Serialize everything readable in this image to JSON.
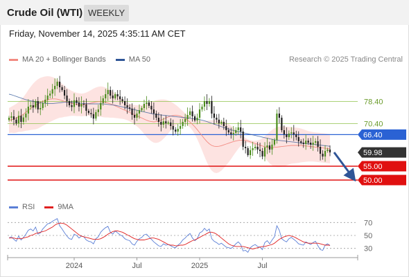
{
  "header": {
    "title": "Crude Oil (WTI)",
    "period": "WEEKLY"
  },
  "timestamp": "Friday, November 14, 2025 4:35:11 AM CET",
  "legend": {
    "items": [
      {
        "label": "MA 20 + Bollinger Bands",
        "color": "#f28b82"
      },
      {
        "label": "MA 50",
        "color": "#2f5597"
      }
    ],
    "copyright": "Research © 2025 Trading Central"
  },
  "rsi_legend": {
    "items": [
      {
        "label": "RSI",
        "color": "#5b7fd6"
      },
      {
        "label": "9MA",
        "color": "#e02020"
      }
    ]
  },
  "chart_data": [
    {
      "type": "candlestick",
      "x_ticks": [
        "2024",
        "Jul",
        "2025",
        "Jul"
      ],
      "ylim": [
        45,
        90
      ],
      "levels": [
        {
          "label": "78.40",
          "value": 78.4,
          "kind": "green-line",
          "color": "#8fc24a"
        },
        {
          "label": "70.40",
          "value": 70.4,
          "kind": "green-line",
          "color": "#8fc24a"
        },
        {
          "label": "66.40",
          "value": 66.4,
          "kind": "resistance",
          "color": "#2a62d4"
        },
        {
          "label": "59.98",
          "value": 59.98,
          "kind": "last-price",
          "color": "#333333"
        },
        {
          "label": "55.00",
          "value": 55.0,
          "kind": "support",
          "color": "#e01010"
        },
        {
          "label": "50.00",
          "value": 50.0,
          "kind": "support",
          "color": "#e01010"
        }
      ],
      "forecast_arrow": {
        "from": 60.0,
        "to": 50.5,
        "color": "#2f5597"
      },
      "close": [
        72.5,
        73.0,
        71.8,
        70.5,
        73.2,
        71.0,
        72.6,
        74.0,
        76.5,
        77.0,
        76.2,
        78.5,
        75.5,
        76.0,
        77.8,
        79.0,
        80.5,
        81.2,
        82.8,
        84.0,
        85.5,
        83.5,
        82.5,
        80.5,
        78.5,
        77.0,
        76.4,
        78.8,
        78.0,
        76.5,
        77.5,
        77.3,
        75.0,
        74.2,
        73.8,
        72.2,
        74.5,
        75.5,
        77.8,
        79.5,
        81.0,
        82.5,
        80.5,
        79.5,
        81.0,
        80.2,
        79.2,
        78.5,
        77.0,
        76.2,
        75.8,
        73.5,
        72.5,
        74.0,
        75.2,
        76.0,
        77.5,
        78.0,
        76.8,
        75.5,
        74.0,
        72.5,
        71.0,
        70.0,
        71.2,
        70.5,
        70.8,
        69.5,
        68.2,
        67.5,
        68.5,
        69.5,
        71.0,
        72.0,
        73.5,
        74.8,
        73.0,
        71.5,
        72.5,
        75.5,
        76.5,
        78.5,
        77.5,
        78.5,
        74.0,
        72.5,
        71.8,
        70.5,
        71.0,
        69.5,
        68.0,
        67.2,
        66.5,
        67.0,
        68.0,
        69.0,
        67.5,
        62.0,
        61.5,
        59.0,
        60.8,
        61.5,
        62.0,
        61.0,
        60.5,
        58.5,
        61.8,
        62.5,
        61.0,
        62.8,
        64.5,
        74.0,
        72.5,
        68.0,
        66.5,
        65.5,
        66.8,
        67.2,
        66.5,
        65.5,
        64.0,
        63.5,
        63.0,
        64.2,
        63.5,
        62.8,
        63.5,
        64.0,
        62.0,
        59.5,
        58.5,
        60.5,
        61.0,
        59.98
      ],
      "ma20": [
        71.5,
        71.8,
        72.0,
        72.3,
        72.8,
        73.2,
        73.8,
        74.5,
        75.2,
        75.9,
        76.5,
        77.0,
        77.5,
        78.0,
        78.4,
        78.7,
        79.0,
        79.2,
        79.3,
        79.3,
        79.2,
        79.0,
        78.7,
        78.4,
        78.1,
        77.9,
        77.7,
        77.5,
        77.3,
        77.2,
        77.1,
        77.2,
        77.4,
        77.6,
        77.8,
        78.0,
        78.2,
        78.3,
        78.3,
        78.2,
        78.0,
        77.8,
        77.5,
        77.2,
        76.8,
        76.4,
        76.0,
        75.6,
        75.2,
        74.8,
        74.4,
        74.0,
        73.6,
        73.2,
        72.8,
        72.4,
        72.0,
        71.6,
        71.3,
        71.1,
        71.0,
        71.1,
        71.3,
        71.6,
        72.0,
        72.4,
        72.8,
        73.1,
        73.3,
        73.4,
        73.3,
        73.1,
        72.7,
        72.2,
        71.6,
        70.9,
        70.1,
        69.2,
        68.2,
        67.1,
        66.0,
        64.9,
        63.9,
        63.1,
        62.5,
        62.2,
        62.1,
        62.2,
        62.4,
        62.7,
        63.0,
        63.3,
        63.6,
        63.9,
        64.1,
        64.3,
        64.4,
        64.4,
        64.3,
        64.1,
        63.8,
        63.5,
        63.2,
        62.9,
        62.6,
        62.3,
        62.0,
        61.8,
        61.7,
        61.7,
        61.8,
        61.9,
        62.0,
        62.1,
        62.2,
        62.3,
        62.4,
        62.5,
        62.5,
        62.5,
        62.5,
        62.5,
        62.4,
        62.3,
        62.2,
        62.1,
        62.0,
        61.9,
        61.8,
        61.7,
        61.6,
        61.5,
        61.4,
        61.3
      ],
      "upper_band": [
        76.0,
        76.5,
        77.0,
        77.5,
        78.2,
        79.0,
        80.0,
        81.2,
        82.5,
        83.7,
        84.8,
        85.7,
        86.4,
        86.9,
        87.2,
        87.4,
        87.5,
        87.4,
        87.2,
        86.8,
        86.2,
        85.5,
        84.8,
        84.0,
        83.3,
        82.7,
        82.2,
        81.8,
        81.5,
        81.3,
        81.2,
        81.3,
        81.6,
        82.0,
        82.5,
        83.0,
        83.4,
        83.7,
        83.8,
        83.7,
        83.4,
        83.0,
        82.5,
        81.9,
        81.2,
        80.5,
        79.8,
        79.1,
        78.5,
        78.0,
        77.6,
        77.3,
        77.1,
        77.0,
        77.0,
        77.1,
        77.3,
        77.6,
        77.9,
        78.2,
        78.5,
        78.8,
        79.0,
        79.1,
        79.1,
        79.0,
        78.7,
        78.3,
        77.8,
        77.2,
        76.5,
        75.7,
        74.9,
        74.1,
        73.4,
        72.8,
        72.3,
        71.9,
        71.6,
        71.4,
        71.3,
        71.3,
        71.4,
        71.5,
        71.6,
        71.7,
        71.7,
        71.6,
        71.4,
        71.1,
        70.7,
        70.2,
        69.6,
        68.9,
        68.1,
        67.3,
        66.5,
        65.8,
        65.2,
        64.7,
        64.4,
        64.2,
        64.2,
        64.3,
        64.6,
        65.1,
        65.8,
        66.6,
        67.4,
        68.1,
        68.7,
        69.1,
        69.3,
        69.4,
        69.4,
        69.3,
        69.2,
        69.1,
        69.0,
        68.9,
        68.8,
        68.6,
        68.3,
        68.0,
        67.7,
        67.5,
        67.3,
        67.2,
        67.1,
        67.0,
        66.9,
        66.8,
        66.7,
        66.6
      ],
      "lower_band": [
        67.0,
        67.1,
        67.0,
        67.1,
        67.4,
        67.4,
        67.6,
        67.8,
        67.9,
        68.1,
        68.2,
        68.3,
        68.6,
        69.1,
        69.6,
        70.0,
        70.5,
        71.0,
        71.4,
        71.8,
        72.2,
        72.5,
        72.6,
        72.8,
        72.9,
        73.1,
        73.2,
        73.2,
        73.1,
        73.1,
        73.0,
        73.1,
        73.2,
        73.2,
        73.1,
        73.0,
        73.0,
        72.9,
        72.8,
        72.7,
        72.6,
        72.6,
        72.5,
        72.5,
        72.4,
        72.3,
        72.2,
        72.1,
        71.9,
        71.6,
        71.2,
        70.7,
        70.1,
        69.4,
        68.6,
        67.7,
        66.7,
        65.6,
        64.7,
        64.0,
        63.5,
        63.4,
        63.6,
        64.1,
        64.9,
        65.8,
        66.9,
        67.9,
        68.8,
        69.6,
        70.1,
        70.5,
        70.5,
        70.3,
        69.8,
        69.0,
        67.9,
        66.5,
        64.8,
        62.8,
        60.7,
        58.5,
        56.4,
        54.7,
        53.4,
        52.7,
        52.5,
        52.8,
        53.4,
        54.3,
        55.3,
        56.4,
        57.6,
        58.9,
        60.1,
        61.3,
        62.3,
        63.0,
        63.4,
        63.5,
        63.2,
        62.8,
        62.2,
        61.5,
        60.6,
        59.5,
        58.2,
        57.0,
        56.0,
        55.3,
        54.9,
        54.7,
        54.7,
        54.8,
        55.0,
        55.3,
        55.6,
        55.9,
        56.0,
        56.1,
        56.2,
        56.4,
        56.5,
        56.6,
        56.7,
        56.7,
        56.7,
        56.6,
        56.5,
        56.4,
        56.3,
        56.2,
        56.1,
        56.0
      ],
      "ma50": [
        81.0,
        80.8,
        80.5,
        80.2,
        79.9,
        79.6,
        79.3,
        79.0,
        78.8,
        78.6,
        78.4,
        78.2,
        78.0,
        77.9,
        77.8,
        77.7,
        77.6,
        77.6,
        77.6,
        77.7,
        77.8,
        77.9,
        78.0,
        78.1,
        78.1,
        78.1,
        78.1,
        78.0,
        77.9,
        77.8,
        77.7,
        77.6,
        77.6,
        77.5,
        77.5,
        77.5,
        77.5,
        77.5,
        77.5,
        77.5,
        77.4,
        77.3,
        77.2,
        77.1,
        77.0,
        76.8,
        76.6,
        76.4,
        76.2,
        76.0,
        75.8,
        75.6,
        75.4,
        75.2,
        75.0,
        74.8,
        74.6,
        74.4,
        74.2,
        74.0,
        73.8,
        73.7,
        73.6,
        73.5,
        73.4,
        73.3,
        73.2,
        73.1,
        73.0,
        72.9,
        72.8,
        72.7,
        72.6,
        72.5,
        72.4,
        72.3,
        72.2,
        72.1,
        72.0,
        71.8,
        71.6,
        71.4,
        71.1,
        70.8,
        70.5,
        70.2,
        69.9,
        69.6,
        69.3,
        69.0,
        68.7,
        68.4,
        68.1,
        67.9,
        67.7,
        67.5,
        67.3,
        67.1,
        66.9,
        66.7,
        66.5,
        66.3,
        66.1,
        65.9,
        65.7,
        65.5,
        65.3,
        65.1,
        64.9,
        64.7,
        64.5,
        64.4,
        64.3,
        64.2,
        64.1,
        64.0,
        63.9,
        63.8,
        63.7,
        63.6,
        63.5,
        63.4,
        63.3,
        63.2,
        63.1,
        63.0,
        62.9,
        62.8,
        62.7,
        62.6,
        62.5,
        62.4,
        62.3,
        62.2
      ]
    },
    {
      "type": "line",
      "title": "",
      "y_ticks": [
        70,
        50,
        30
      ],
      "ylim": [
        20,
        80
      ],
      "series": [
        {
          "name": "RSI",
          "color": "#5b7fd6",
          "values": [
            46,
            48,
            44,
            41,
            49,
            43,
            47,
            52,
            58,
            60,
            57,
            63,
            52,
            54,
            60,
            64,
            68,
            69,
            72,
            74,
            76,
            65,
            60,
            54,
            49,
            45,
            44,
            52,
            50,
            46,
            49,
            48,
            43,
            41,
            40,
            37,
            45,
            48,
            55,
            59,
            62,
            64,
            55,
            52,
            57,
            54,
            51,
            49,
            45,
            43,
            42,
            37,
            35,
            41,
            45,
            47,
            51,
            52,
            48,
            44,
            40,
            37,
            34,
            33,
            37,
            35,
            36,
            34,
            32,
            31,
            35,
            38,
            43,
            46,
            50,
            53,
            46,
            42,
            45,
            54,
            56,
            61,
            57,
            60,
            45,
            41,
            39,
            36,
            38,
            35,
            32,
            31,
            30,
            33,
            37,
            40,
            36,
            26,
            27,
            24,
            31,
            34,
            36,
            33,
            32,
            28,
            39,
            42,
            37,
            43,
            48,
            65,
            58,
            45,
            42,
            40,
            45,
            47,
            44,
            41,
            37,
            36,
            35,
            40,
            38,
            36,
            39,
            41,
            34,
            28,
            27,
            35,
            37,
            34
          ]
        },
        {
          "name": "9MA",
          "color": "#e02020",
          "values": [
            46,
            46,
            46,
            45,
            45,
            45,
            46,
            47,
            48,
            50,
            51,
            53,
            54,
            55,
            56,
            57,
            59,
            61,
            63,
            66,
            68,
            69,
            69,
            68,
            66,
            63,
            60,
            57,
            54,
            51,
            49,
            48,
            47,
            46,
            45,
            44,
            44,
            44,
            45,
            47,
            49,
            52,
            54,
            56,
            57,
            57,
            56,
            55,
            53,
            51,
            49,
            47,
            45,
            44,
            43,
            43,
            43,
            44,
            45,
            46,
            46,
            45,
            44,
            42,
            40,
            38,
            36,
            35,
            35,
            34,
            34,
            35,
            35,
            36,
            38,
            40,
            42,
            43,
            45,
            47,
            49,
            51,
            53,
            55,
            55,
            54,
            52,
            49,
            46,
            43,
            40,
            37,
            35,
            34,
            33,
            33,
            33,
            33,
            32,
            31,
            30,
            29,
            30,
            31,
            32,
            33,
            33,
            34,
            35,
            36,
            38,
            41,
            44,
            46,
            48,
            49,
            50,
            49,
            48,
            46,
            44,
            42,
            40,
            39,
            38,
            38,
            38,
            38,
            38,
            37,
            36,
            35,
            35,
            35
          ]
        }
      ]
    }
  ]
}
